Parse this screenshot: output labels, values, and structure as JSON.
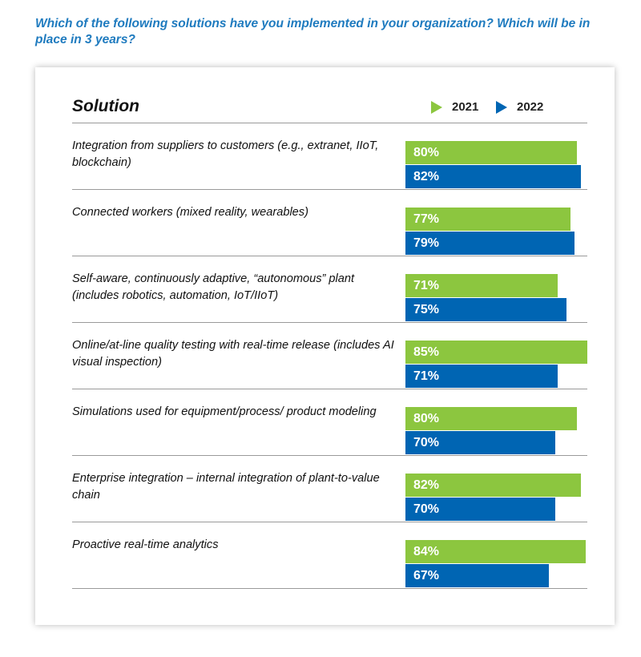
{
  "question": "Which of the following solutions have you implemented in your organization? Which will be in place in 3 years?",
  "header": "Solution",
  "colors": {
    "2021": "#8cc63f",
    "2022": "#0065b3",
    "question": "#1f7bbf"
  },
  "chart_data": {
    "type": "bar",
    "orientation": "horizontal",
    "title": "",
    "categories": [
      "Integration from suppliers to customers (e.g., extranet, IIoT, blockchain)",
      "Connected workers (mixed reality, wearables)",
      "Self-aware, continuously adaptive, “autonomous” plant (includes robotics, automation, IoT/IIoT)",
      "Online/at-line quality testing with real-time release (includes AI visual inspection)",
      "Simulations used for equipment/process/ product modeling",
      "Enterprise integration – internal integration of plant-to-value chain",
      "Proactive real-time analytics"
    ],
    "series": [
      {
        "name": "2021",
        "values": [
          80,
          77,
          71,
          85,
          80,
          82,
          84
        ]
      },
      {
        "name": "2022",
        "values": [
          82,
          79,
          75,
          71,
          70,
          70,
          67
        ]
      }
    ],
    "value_suffix": "%",
    "legend_position": "top-right",
    "grid": false
  }
}
